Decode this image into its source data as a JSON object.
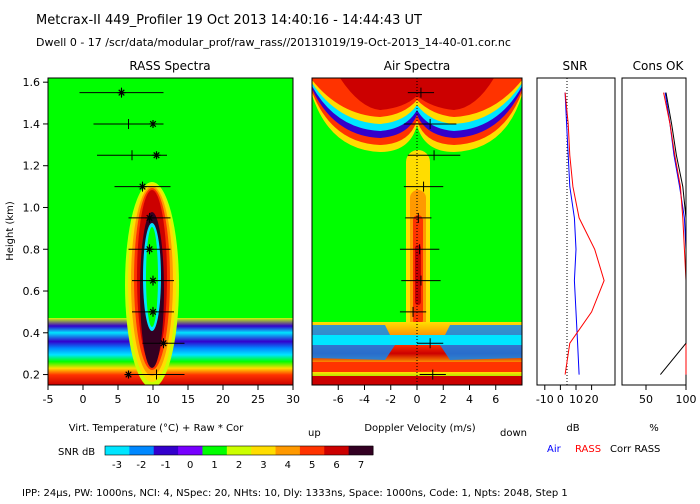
{
  "header": {
    "line1": "Metcrax-II  449_Profiler  19 Oct 2013  14:40:16 - 14:44:43 UT",
    "line2": "Dwell  0 - 17  /scr/data/modular_prof/raw_rass//20131019/19-Oct-2013_14-40-01.cor.nc"
  },
  "footer": "IPP: 24µs, PW: 1000ns, NCI: 4, NSpec: 20, NHts: 10, Dly: 1333ns, Space: 1000ns, Code: 1, Npts: 2048, Step 1",
  "colors": {
    "scale": [
      "#00e5ff",
      "#0088ff",
      "#3300cc",
      "#7700ff",
      "#00ff00",
      "#ccff00",
      "#ffdd00",
      "#ff9900",
      "#ff3300",
      "#cc0000",
      "#330022"
    ],
    "air": "#0000ff",
    "rass": "#ff0000",
    "corr": "#000000"
  },
  "chart_data": [
    {
      "type": "heatmap",
      "title": "RASS Spectra",
      "xlabel": "Virt. Temperature (°C)  + Raw  * Cor",
      "ylabel": "Height (km)",
      "xlim": [
        -5,
        30
      ],
      "ylim": [
        0.15,
        1.62
      ],
      "xticks": [
        -5,
        0,
        5,
        10,
        15,
        20,
        25,
        30
      ],
      "yticks": [
        0.2,
        0.4,
        0.6,
        0.8,
        1.0,
        1.2,
        1.4,
        1.6
      ],
      "points": [
        {
          "height": 0.2,
          "raw": 10.5,
          "cor": 6.5,
          "err": 4
        },
        {
          "height": 0.35,
          "raw": 11.5,
          "cor": 11.5,
          "err": 3
        },
        {
          "height": 0.5,
          "raw": 10,
          "cor": 10,
          "err": 3
        },
        {
          "height": 0.65,
          "raw": 10,
          "cor": 10,
          "err": 3
        },
        {
          "height": 0.8,
          "raw": 9.5,
          "cor": 9.5,
          "err": 3
        },
        {
          "height": 0.95,
          "raw": 9.5,
          "cor": 9.5,
          "err": 3
        },
        {
          "height": 1.1,
          "raw": 8.5,
          "cor": 8.5,
          "err": 4
        },
        {
          "height": 1.25,
          "raw": 7,
          "cor": 10.5,
          "err": 5
        },
        {
          "height": 1.4,
          "raw": 6.5,
          "cor": 10,
          "err": 5
        },
        {
          "height": 1.55,
          "raw": 5.5,
          "cor": 5.5,
          "err": 6
        }
      ]
    },
    {
      "type": "heatmap",
      "title": "Air Spectra",
      "xlabel": "Doppler Velocity (m/s)",
      "xlabel_left": "up",
      "xlabel_right": "down",
      "xlim": [
        -8,
        8
      ],
      "ylim": [
        0.15,
        1.62
      ],
      "xticks": [
        -6,
        -4,
        -2,
        0,
        2,
        4,
        6
      ],
      "points": [
        {
          "height": 0.2,
          "vel": 1.2,
          "err": 1
        },
        {
          "height": 0.35,
          "vel": 1.0,
          "err": 1
        },
        {
          "height": 0.5,
          "vel": -0.3,
          "err": 1
        },
        {
          "height": 0.65,
          "vel": 0.3,
          "err": 1.5
        },
        {
          "height": 0.8,
          "vel": 0.2,
          "err": 1.5
        },
        {
          "height": 0.95,
          "vel": 0.1,
          "err": 1
        },
        {
          "height": 1.1,
          "vel": 0.5,
          "err": 1.5
        },
        {
          "height": 1.25,
          "vel": 1.3,
          "err": 2
        },
        {
          "height": 1.4,
          "vel": 1.0,
          "err": 2
        },
        {
          "height": 1.55,
          "vel": 0.3,
          "err": 1
        }
      ]
    },
    {
      "type": "line",
      "title": "SNR",
      "xlabel": "dB",
      "xlim": [
        -15,
        35
      ],
      "ylim": [
        0.15,
        1.62
      ],
      "xticks": [
        -10,
        0,
        10,
        20
      ],
      "heights": [
        0.2,
        0.35,
        0.5,
        0.65,
        0.8,
        0.95,
        1.1,
        1.25,
        1.4,
        1.55
      ],
      "series": [
        {
          "name": "Air",
          "values": [
            12,
            11,
            10,
            9,
            10,
            9,
            6,
            5,
            4,
            3
          ]
        },
        {
          "name": "RASS",
          "values": [
            3,
            6,
            20,
            28,
            22,
            12,
            8,
            6,
            5,
            3
          ]
        }
      ]
    },
    {
      "type": "line",
      "title": "Cons OK",
      "xlabel": "%",
      "xlim": [
        20,
        100
      ],
      "ylim": [
        0.15,
        1.62
      ],
      "xticks": [
        50,
        100
      ],
      "heights": [
        0.2,
        0.35,
        0.5,
        0.65,
        0.8,
        0.95,
        1.1,
        1.25,
        1.4,
        1.55
      ],
      "series": [
        {
          "name": "Air",
          "values": [
            100,
            100,
            100,
            100,
            100,
            98,
            92,
            85,
            80,
            74
          ]
        },
        {
          "name": "RASS",
          "values": [
            100,
            100,
            100,
            100,
            98,
            96,
            93,
            86,
            80,
            72
          ]
        },
        {
          "name": "Corr RASS",
          "values": [
            68,
            100,
            100,
            100,
            100,
            100,
            96,
            88,
            82,
            75
          ]
        }
      ]
    }
  ],
  "legend": {
    "title": "SNR dB",
    "ticks": [
      "-3",
      "-2",
      "-1",
      "0",
      "1",
      "2",
      "3",
      "4",
      "5",
      "6",
      "7"
    ],
    "line_legend": [
      "Air",
      "RASS",
      "Corr RASS"
    ]
  }
}
